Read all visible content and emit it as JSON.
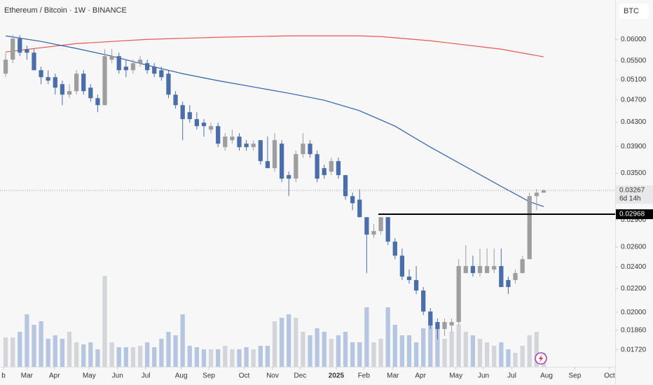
{
  "chart_data": {
    "type": "candlestick",
    "title": "Ethereum / Bitcoin · 1W · BINANCE",
    "currency": "BTC",
    "countdown": "6d 14h",
    "log_scale": true,
    "up_color": "#9e9e9e",
    "down_color": "#4a6ea9",
    "volume_up_color": "#d3d5da",
    "volume_down_color": "#b6c6e0",
    "open": [
      0.05226,
      0.05529,
      0.06017,
      0.05768,
      0.05687,
      0.053,
      0.05153,
      0.05153,
      0.0501,
      0.04803,
      0.04871,
      0.05226,
      0.0494,
      0.04735,
      0.04604,
      0.05529,
      0.05608,
      0.05375,
      0.053,
      0.05452,
      0.05452,
      0.05375,
      0.053,
      0.05226,
      0.04803,
      0.04604,
      0.04476,
      0.04352,
      0.04291,
      0.04172,
      0.04231,
      0.03888,
      0.03999,
      0.04056,
      0.03943,
      0.03888,
      0.03999,
      0.03675,
      0.03573,
      0.03943,
      0.03474,
      0.03425,
      0.0378,
      0.03943,
      0.0378,
      0.03573,
      0.03523,
      0.03675,
      0.03474,
      0.03192,
      0.03147,
      0.02933,
      0.02734,
      0.02773,
      0.02933,
      0.02658,
      0.02512,
      0.02309,
      0.02277,
      0.02183,
      0.02006,
      0.01923,
      0.0187,
      0.01897,
      0.01923,
      0.02342,
      0.02409,
      0.02342,
      0.02342,
      0.02375,
      0.02409,
      0.02277,
      0.02277,
      0.02342,
      0.02477,
      0.03192,
      0.03237
    ],
    "high": [
      0.05687,
      0.06102,
      0.06102,
      0.0585,
      0.05768,
      0.05375,
      0.053,
      0.05226,
      0.05081,
      0.0501,
      0.053,
      0.053,
      0.0501,
      0.04803,
      0.05768,
      0.05768,
      0.05687,
      0.05529,
      0.05529,
      0.05608,
      0.05529,
      0.05452,
      0.05375,
      0.053,
      0.04871,
      0.04669,
      0.04604,
      0.04476,
      0.04352,
      0.04291,
      0.04291,
      0.04113,
      0.04172,
      0.04113,
      0.03999,
      0.03999,
      0.03999,
      0.04056,
      0.04113,
      0.03999,
      0.03523,
      0.03834,
      0.04113,
      0.03999,
      0.03834,
      0.03624,
      0.03727,
      0.03727,
      0.03474,
      0.03237,
      0.03283,
      0.02933,
      0.02852,
      0.02933,
      0.02933,
      0.02696,
      0.02584,
      0.02375,
      0.02409,
      0.02214,
      0.02034,
      0.01951,
      0.01951,
      0.01951,
      0.02477,
      0.02621,
      0.02512,
      0.02584,
      0.02584,
      0.02584,
      0.02584,
      0.02309,
      0.02375,
      0.02512,
      0.03237,
      0.03283,
      0.03283
    ],
    "low": [
      0.05153,
      0.05452,
      0.05608,
      0.05529,
      0.053,
      0.0501,
      0.0501,
      0.04803,
      0.04604,
      0.04735,
      0.04803,
      0.04803,
      0.04669,
      0.04476,
      0.04604,
      0.05452,
      0.05226,
      0.05153,
      0.05226,
      0.05375,
      0.05226,
      0.05153,
      0.05081,
      0.04735,
      0.04539,
      0.03999,
      0.04291,
      0.04172,
      0.04056,
      0.04113,
      0.03888,
      0.03834,
      0.03943,
      0.03834,
      0.03834,
      0.03834,
      0.03624,
      0.03573,
      0.03523,
      0.03377,
      0.03192,
      0.03377,
      0.03727,
      0.03727,
      0.03377,
      0.03425,
      0.03474,
      0.03425,
      0.03147,
      0.03017,
      0.02933,
      0.02342,
      0.02696,
      0.02734,
      0.02621,
      0.02477,
      0.02277,
      0.02245,
      0.02152,
      0.01978,
      0.0187,
      0.01793,
      0.01818,
      0.01844,
      0.01897,
      0.02342,
      0.02309,
      0.02309,
      0.02342,
      0.02342,
      0.02214,
      0.02152,
      0.02245,
      0.02342,
      0.02477,
      0.03017,
      0.03237
    ],
    "close": [
      0.05529,
      0.06017,
      0.05687,
      0.05687,
      0.053,
      0.05153,
      0.05081,
      0.0494,
      0.04803,
      0.04871,
      0.05226,
      0.04871,
      0.04735,
      0.04604,
      0.05608,
      0.05608,
      0.053,
      0.053,
      0.05452,
      0.05529,
      0.053,
      0.05226,
      0.05153,
      0.04803,
      0.04604,
      0.04352,
      0.04352,
      0.04231,
      0.04231,
      0.04231,
      0.03943,
      0.04056,
      0.04056,
      0.03888,
      0.03888,
      0.03943,
      0.03675,
      0.03573,
      0.03999,
      0.03425,
      0.03425,
      0.0378,
      0.03943,
      0.0378,
      0.03425,
      0.03474,
      0.03675,
      0.03474,
      0.03192,
      0.03103,
      0.02933,
      0.02734,
      0.02773,
      0.02933,
      0.02658,
      0.02512,
      0.02309,
      0.02277,
      0.02183,
      0.02006,
      0.01897,
      0.0187,
      0.01923,
      0.01923,
      0.02409,
      0.02409,
      0.02342,
      0.02409,
      0.02409,
      0.02409,
      0.02214,
      0.02214,
      0.02342,
      0.02477,
      0.03192,
      0.03237,
      0.03267
    ],
    "volume": [
      42,
      42,
      50,
      75,
      60,
      65,
      40,
      45,
      40,
      50,
      35,
      32,
      35,
      25,
      130,
      35,
      28,
      28,
      28,
      30,
      35,
      28,
      40,
      50,
      45,
      75,
      30,
      28,
      25,
      25,
      25,
      30,
      25,
      25,
      28,
      25,
      30,
      30,
      65,
      70,
      75,
      70,
      50,
      45,
      55,
      50,
      40,
      45,
      50,
      35,
      35,
      85,
      35,
      40,
      85,
      60,
      45,
      45,
      35,
      55,
      70,
      55,
      40,
      50,
      60,
      50,
      45,
      40,
      35,
      30,
      35,
      25,
      20,
      30,
      45,
      50,
      20
    ],
    "moving_averages": [
      {
        "color": "#e8564f",
        "x": [
          0,
          10,
          20,
          30,
          40,
          50,
          53,
          60,
          70,
          76
        ],
        "values": [
          0.05704,
          0.05899,
          0.06,
          0.06051,
          0.06085,
          0.06085,
          0.06068,
          0.05966,
          0.05768,
          0.05592
        ]
      },
      {
        "color": "#2f5fa8",
        "x": [
          0,
          5,
          10,
          15,
          20,
          25,
          30,
          35,
          40,
          45,
          50,
          55,
          60,
          65,
          70,
          74,
          76
        ],
        "values": [
          0.06085,
          0.0595,
          0.05784,
          0.05608,
          0.05406,
          0.05226,
          0.05081,
          0.04954,
          0.0483,
          0.04696,
          0.04502,
          0.04231,
          0.03888,
          0.03593,
          0.0332,
          0.03121,
          0.03061
        ]
      }
    ],
    "hline": 0.02968,
    "ylim": [
      0.01606,
      0.0703
    ],
    "yticks": [
      {
        "value": 0.06,
        "label": "0.06000"
      },
      {
        "value": 0.055,
        "label": "0.05500"
      },
      {
        "value": 0.051,
        "label": "0.05100"
      },
      {
        "value": 0.047,
        "label": "0.04700"
      },
      {
        "value": 0.043,
        "label": "0.04300"
      },
      {
        "value": 0.039,
        "label": "0.03900"
      },
      {
        "value": 0.035,
        "label": "0.03500"
      },
      {
        "value": 0.029,
        "label": "0.02900"
      },
      {
        "value": 0.026,
        "label": "0.02600"
      },
      {
        "value": 0.024,
        "label": "0.02400"
      },
      {
        "value": 0.022,
        "label": "0.02200"
      },
      {
        "value": 0.02,
        "label": "0.02000"
      },
      {
        "value": 0.0186,
        "label": "0.01860"
      },
      {
        "value": 0.0172,
        "label": "0.01720"
      }
    ],
    "xlim": [
      -0.8,
      86.1
    ],
    "xticks": [
      {
        "value": -0.3,
        "label": "b"
      },
      {
        "value": 3,
        "label": "Mar"
      },
      {
        "value": 6.9,
        "label": "Apr"
      },
      {
        "value": 11.8,
        "label": "May"
      },
      {
        "value": 15.8,
        "label": "Jun"
      },
      {
        "value": 19.8,
        "label": "Jul"
      },
      {
        "value": 24.8,
        "label": "Aug"
      },
      {
        "value": 28.7,
        "label": "Sep"
      },
      {
        "value": 33.7,
        "label": "Oct"
      },
      {
        "value": 37.7,
        "label": "Nov"
      },
      {
        "value": 41.6,
        "label": "Dec"
      },
      {
        "value": 46.7,
        "label": "2025"
      },
      {
        "value": 50.6,
        "label": "Feb"
      },
      {
        "value": 54.7,
        "label": "Mar"
      },
      {
        "value": 58.6,
        "label": "Apr"
      },
      {
        "value": 63.6,
        "label": "May"
      },
      {
        "value": 67.5,
        "label": "Jun"
      },
      {
        "value": 71.5,
        "label": "Jul"
      },
      {
        "value": 76.4,
        "label": "Aug"
      },
      {
        "value": 80.4,
        "label": "Sep"
      },
      {
        "value": 85.3,
        "label": "Oct"
      }
    ]
  }
}
